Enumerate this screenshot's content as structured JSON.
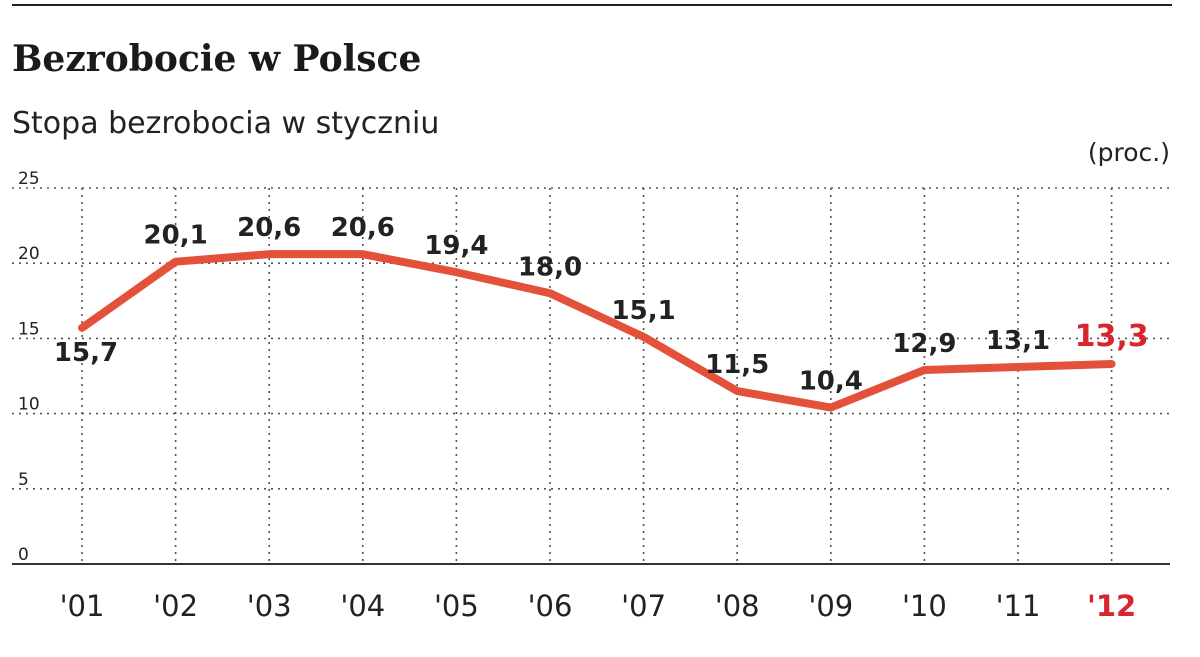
{
  "title": "Bezrobocie w Polsce",
  "subtitle": "Stopa bezrobocia w styczniu",
  "unit": "(proc.)",
  "colors": {
    "line": "#e4513a",
    "highlight": "#d9252e",
    "text": "#222222",
    "grid": "#555555"
  },
  "chart_data": {
    "type": "line",
    "title": "Bezrobocie w Polsce",
    "subtitle": "Stopa bezrobocia w styczniu",
    "ylabel": "(proc.)",
    "xlabel": "",
    "categories": [
      "'01",
      "'02",
      "'03",
      "'04",
      "'05",
      "'06",
      "'07",
      "'08",
      "'09",
      "'10",
      "'11",
      "'12"
    ],
    "values": [
      15.7,
      20.1,
      20.6,
      20.6,
      19.4,
      18.0,
      15.1,
      11.5,
      10.4,
      12.9,
      13.1,
      13.3
    ],
    "value_labels": [
      "15,7",
      "20,1",
      "20,6",
      "20,6",
      "19,4",
      "18,0",
      "15,1",
      "11,5",
      "10,4",
      "12,9",
      "13,1",
      "13,3"
    ],
    "highlight_last": true,
    "ylim": [
      0,
      25
    ],
    "yticks": [
      "0",
      "5",
      "10",
      "15",
      "20",
      "25"
    ],
    "yticks_values": [
      0,
      5,
      10,
      15,
      20,
      25
    ],
    "grid": true,
    "legend": "none"
  }
}
